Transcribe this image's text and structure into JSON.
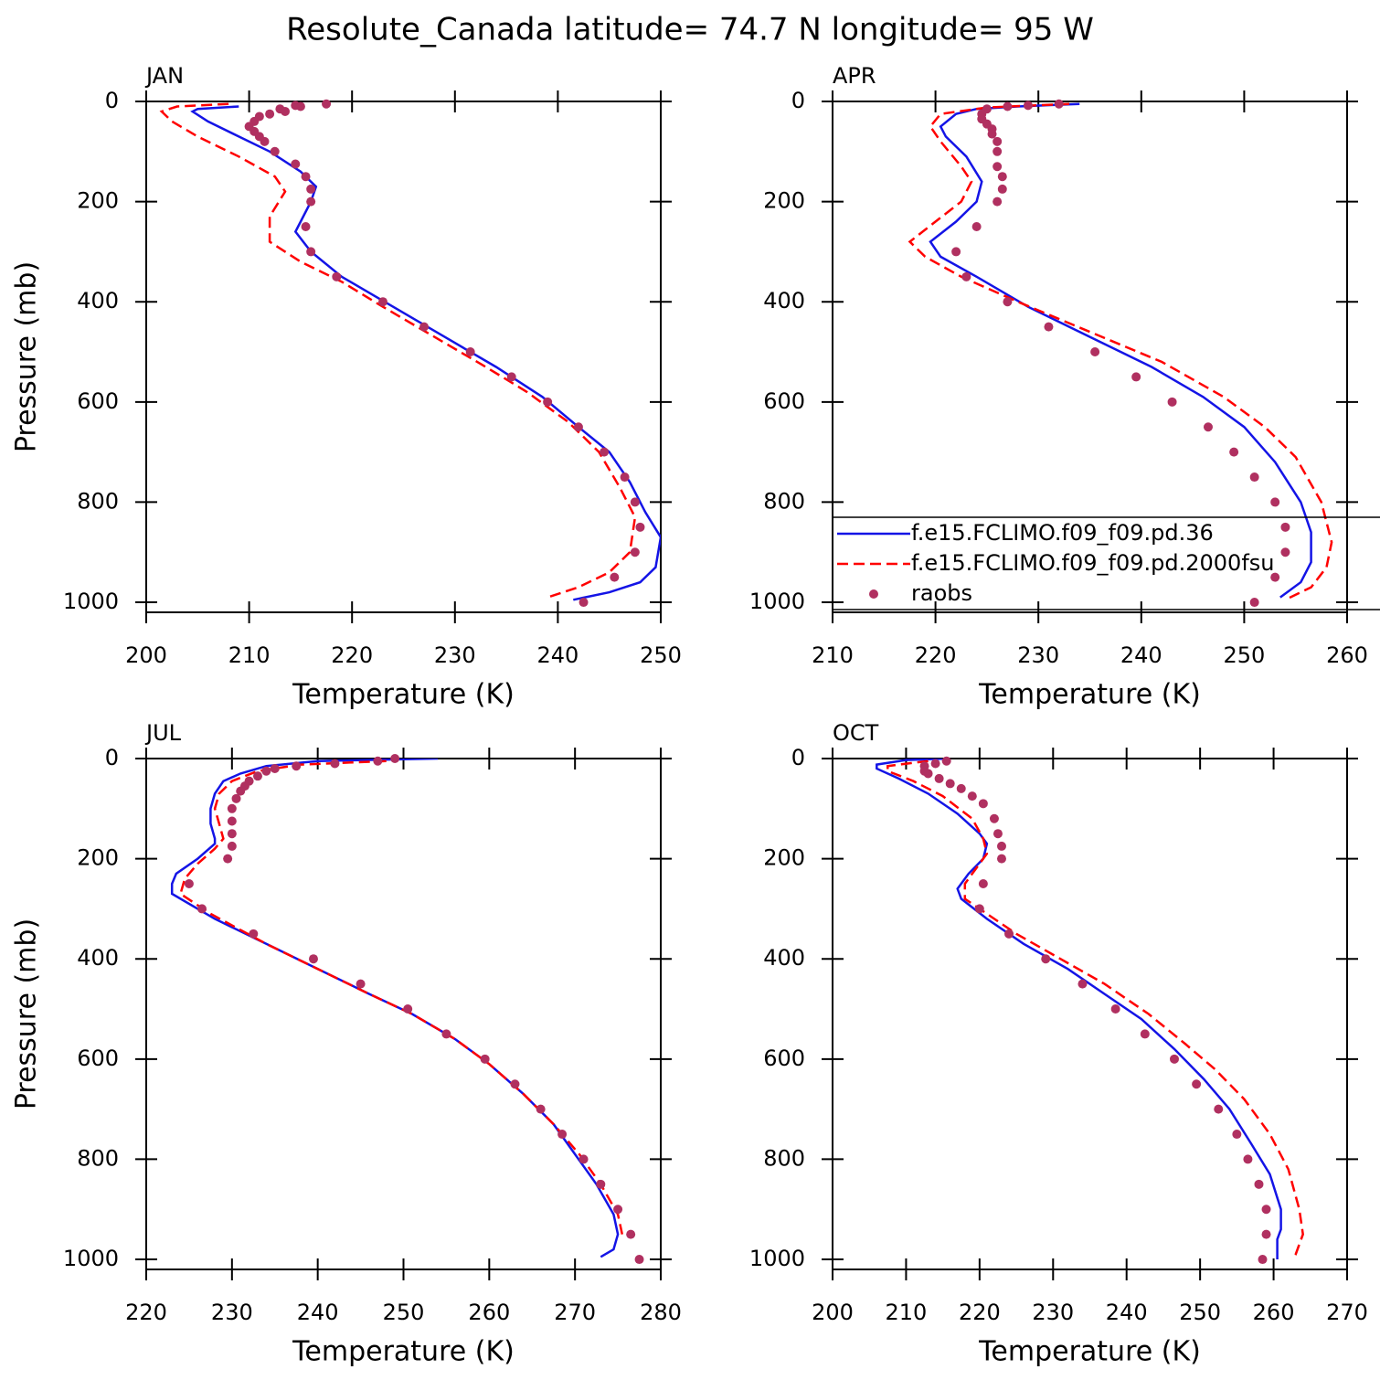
{
  "title": "Resolute_Canada  latitude= 74.7 N longitude= 95 W",
  "chart_data": [
    {
      "type": "line",
      "title": "JAN",
      "xlabel": "Temperature (K)",
      "ylabel": "Pressure (mb)",
      "xlim": [
        200,
        250
      ],
      "xticks": [
        200,
        210,
        220,
        230,
        240,
        250
      ],
      "ylim": [
        0,
        1020
      ],
      "yticks": [
        0,
        200,
        400,
        600,
        800,
        1000
      ],
      "y_inverted": true,
      "series": [
        {
          "color": "#1414e6",
          "style": "solid",
          "x": [
            209,
            205,
            204.5,
            206,
            209,
            212,
            215,
            216.5,
            216,
            214.5,
            216,
            219,
            224,
            229,
            234,
            238.5,
            242,
            245,
            247,
            248.5,
            250,
            249.5,
            248,
            245,
            241.5
          ],
          "values": [
            10,
            15,
            20,
            40,
            70,
            100,
            140,
            170,
            200,
            260,
            300,
            350,
            410,
            470,
            530,
            590,
            650,
            700,
            760,
            820,
            870,
            930,
            960,
            980,
            995
          ]
        },
        {
          "color": "#ff0000",
          "style": "dashed",
          "x": [
            208,
            203,
            201.5,
            202.5,
            205,
            209,
            212.5,
            213.5,
            212,
            212,
            215,
            219,
            223,
            228,
            233,
            237,
            241,
            244,
            246,
            247.5,
            247,
            245,
            242,
            239
          ],
          "values": [
            5,
            10,
            20,
            40,
            70,
            110,
            150,
            180,
            230,
            280,
            320,
            360,
            410,
            470,
            530,
            580,
            640,
            700,
            770,
            830,
            900,
            940,
            970,
            990
          ]
        },
        {
          "color": "#b03060",
          "style": "dots",
          "x": [
            217.5,
            214.5,
            215,
            213,
            213.5,
            212,
            211,
            210.5,
            210,
            210.5,
            211,
            211.5,
            212.5,
            214.5,
            215.5,
            216,
            216,
            215.5,
            216,
            218.5,
            223,
            227,
            231.5,
            235.5,
            239,
            242,
            244.5,
            246.5,
            247.5,
            248,
            247.5,
            245.5,
            242.5
          ],
          "values": [
            5,
            8,
            10,
            15,
            20,
            25,
            30,
            40,
            50,
            60,
            70,
            80,
            100,
            125,
            150,
            175,
            200,
            250,
            300,
            350,
            400,
            450,
            500,
            550,
            600,
            650,
            700,
            750,
            800,
            850,
            900,
            950,
            1000
          ]
        }
      ]
    },
    {
      "type": "line",
      "title": "APR",
      "xlabel": "Temperature (K)",
      "xlim": [
        210,
        260
      ],
      "xticks": [
        210,
        220,
        230,
        240,
        250,
        260
      ],
      "ylim": [
        0,
        1020
      ],
      "yticks": [
        0,
        200,
        400,
        600,
        800,
        1000
      ],
      "y_inverted": true,
      "legend": "lower right",
      "series": [
        {
          "name": "f.e15.FCLIMO.f09_f09.pd.36",
          "color": "#1414e6",
          "style": "solid",
          "x": [
            234,
            228,
            224,
            222,
            220.5,
            221,
            223,
            224.5,
            224,
            222,
            219.5,
            220.5,
            224,
            229,
            235,
            241,
            246,
            250,
            253,
            255.5,
            256.5,
            256.5,
            255.5,
            253.5
          ],
          "values": [
            5,
            10,
            15,
            25,
            50,
            70,
            110,
            160,
            200,
            240,
            280,
            310,
            350,
            410,
            470,
            530,
            590,
            650,
            720,
            800,
            860,
            920,
            960,
            990
          ]
        },
        {
          "name": "f.e15.FCLIMO.f09_f09.pd.2000fsu",
          "color": "#ff0000",
          "style": "dashed",
          "x": [
            233,
            225,
            220.5,
            219.5,
            220.5,
            222.5,
            223.5,
            222.5,
            220,
            217.5,
            219,
            222.5,
            228,
            235,
            242,
            248,
            252,
            255,
            257.5,
            258.5,
            258,
            256.5,
            254
          ],
          "values": [
            5,
            12,
            25,
            50,
            80,
            130,
            160,
            200,
            240,
            280,
            310,
            350,
            400,
            460,
            520,
            590,
            650,
            710,
            800,
            880,
            930,
            970,
            995
          ]
        },
        {
          "name": "raobs",
          "color": "#b03060",
          "style": "dots",
          "x": [
            232,
            229,
            227,
            225,
            224.5,
            224.5,
            225,
            225.5,
            225.5,
            226,
            226,
            226,
            226.5,
            226.5,
            226,
            224,
            222,
            223,
            227,
            231,
            235.5,
            239.5,
            243,
            246.5,
            249,
            251,
            253,
            254,
            254,
            253,
            251
          ],
          "values": [
            5,
            8,
            10,
            15,
            25,
            35,
            45,
            55,
            65,
            80,
            100,
            130,
            150,
            175,
            200,
            250,
            300,
            350,
            400,
            450,
            500,
            550,
            600,
            650,
            700,
            750,
            800,
            850,
            900,
            950,
            1000
          ]
        }
      ]
    },
    {
      "type": "line",
      "title": "JUL",
      "xlabel": "Temperature (K)",
      "ylabel": "Pressure (mb)",
      "xlim": [
        220,
        280
      ],
      "xticks": [
        220,
        230,
        240,
        250,
        260,
        270,
        280
      ],
      "ylim": [
        0,
        1020
      ],
      "yticks": [
        0,
        200,
        400,
        600,
        800,
        1000
      ],
      "y_inverted": true,
      "series": [
        {
          "color": "#1414e6",
          "style": "solid",
          "x": [
            254,
            240,
            234,
            231,
            229,
            228,
            227.5,
            227.5,
            228,
            228,
            226,
            223.5,
            223,
            223,
            228,
            234,
            240,
            246,
            251,
            256,
            260,
            264,
            267.5,
            270,
            272.5,
            274.5,
            275,
            274.5,
            273
          ],
          "values": [
            0,
            5,
            15,
            30,
            45,
            70,
            100,
            130,
            160,
            170,
            200,
            230,
            250,
            270,
            320,
            370,
            420,
            470,
            510,
            560,
            610,
            670,
            730,
            790,
            850,
            910,
            950,
            980,
            995
          ]
        },
        {
          "color": "#ff0000",
          "style": "dashed",
          "x": [
            248,
            238,
            233,
            230,
            228.5,
            228,
            228.5,
            229,
            228,
            226,
            224.5,
            224,
            227.5,
            234,
            240,
            246,
            251,
            256,
            260,
            264,
            267.5,
            270.5,
            273,
            275,
            275.5
          ],
          "values": [
            5,
            12,
            25,
            45,
            70,
            100,
            130,
            160,
            180,
            210,
            240,
            270,
            310,
            370,
            420,
            470,
            510,
            560,
            610,
            670,
            730,
            790,
            850,
            910,
            950
          ]
        },
        {
          "color": "#b03060",
          "style": "dots",
          "x": [
            249,
            247,
            242,
            237.5,
            235,
            234,
            233,
            232,
            231.5,
            231,
            230.5,
            230,
            230,
            230,
            230,
            229.5,
            225,
            226.5,
            232.5,
            239.5,
            245,
            250.5,
            255,
            259.5,
            263,
            266,
            268.5,
            271,
            273,
            275,
            276.5,
            277.5
          ],
          "values": [
            0,
            5,
            10,
            15,
            20,
            25,
            35,
            45,
            55,
            65,
            80,
            100,
            125,
            150,
            175,
            200,
            250,
            300,
            350,
            400,
            450,
            500,
            550,
            600,
            650,
            700,
            750,
            800,
            850,
            900,
            950,
            1000
          ]
        }
      ]
    },
    {
      "type": "line",
      "title": "OCT",
      "xlabel": "Temperature (K)",
      "xlim": [
        200,
        270
      ],
      "xticks": [
        200,
        210,
        220,
        230,
        240,
        250,
        260,
        270
      ],
      "ylim": [
        0,
        1020
      ],
      "yticks": [
        0,
        200,
        400,
        600,
        800,
        1000
      ],
      "y_inverted": true,
      "series": [
        {
          "color": "#1414e6",
          "style": "solid",
          "x": [
            216,
            210,
            206,
            206,
            209,
            213,
            217,
            220,
            221,
            220.5,
            218.5,
            217,
            217.5,
            221,
            226,
            232,
            237,
            242,
            246.5,
            250.5,
            254,
            257,
            259.5,
            261,
            261,
            260.5,
            260.5
          ],
          "values": [
            0,
            3,
            12,
            20,
            40,
            70,
            110,
            150,
            170,
            200,
            230,
            260,
            280,
            320,
            370,
            420,
            470,
            520,
            580,
            640,
            700,
            770,
            830,
            900,
            940,
            960,
            1000
          ]
        },
        {
          "color": "#ff0000",
          "style": "dashed",
          "x": [
            213,
            207.5,
            207.5,
            211,
            215,
            219,
            220.5,
            221,
            219.5,
            218,
            218,
            221,
            225,
            231,
            237,
            243,
            248,
            252,
            256,
            259.5,
            262,
            263.5,
            264,
            263,
            262.5
          ],
          "values": [
            5,
            15,
            25,
            45,
            75,
            120,
            160,
            190,
            220,
            250,
            280,
            310,
            350,
            400,
            450,
            510,
            570,
            620,
            680,
            750,
            820,
            900,
            950,
            990,
            1000
          ]
        },
        {
          "color": "#b03060",
          "style": "dots",
          "x": [
            215.5,
            214,
            212.5,
            212.5,
            213,
            214.5,
            216,
            217.5,
            219,
            220.5,
            222,
            222.5,
            223,
            223,
            220.5,
            220,
            224,
            229,
            234,
            238.5,
            242.5,
            246.5,
            249.5,
            252.5,
            255,
            256.5,
            258,
            259,
            259,
            258.5
          ],
          "values": [
            5,
            10,
            15,
            25,
            30,
            40,
            50,
            60,
            75,
            90,
            120,
            150,
            175,
            200,
            250,
            300,
            350,
            400,
            450,
            500,
            550,
            600,
            650,
            700,
            750,
            800,
            850,
            900,
            950,
            1000
          ]
        }
      ]
    }
  ]
}
